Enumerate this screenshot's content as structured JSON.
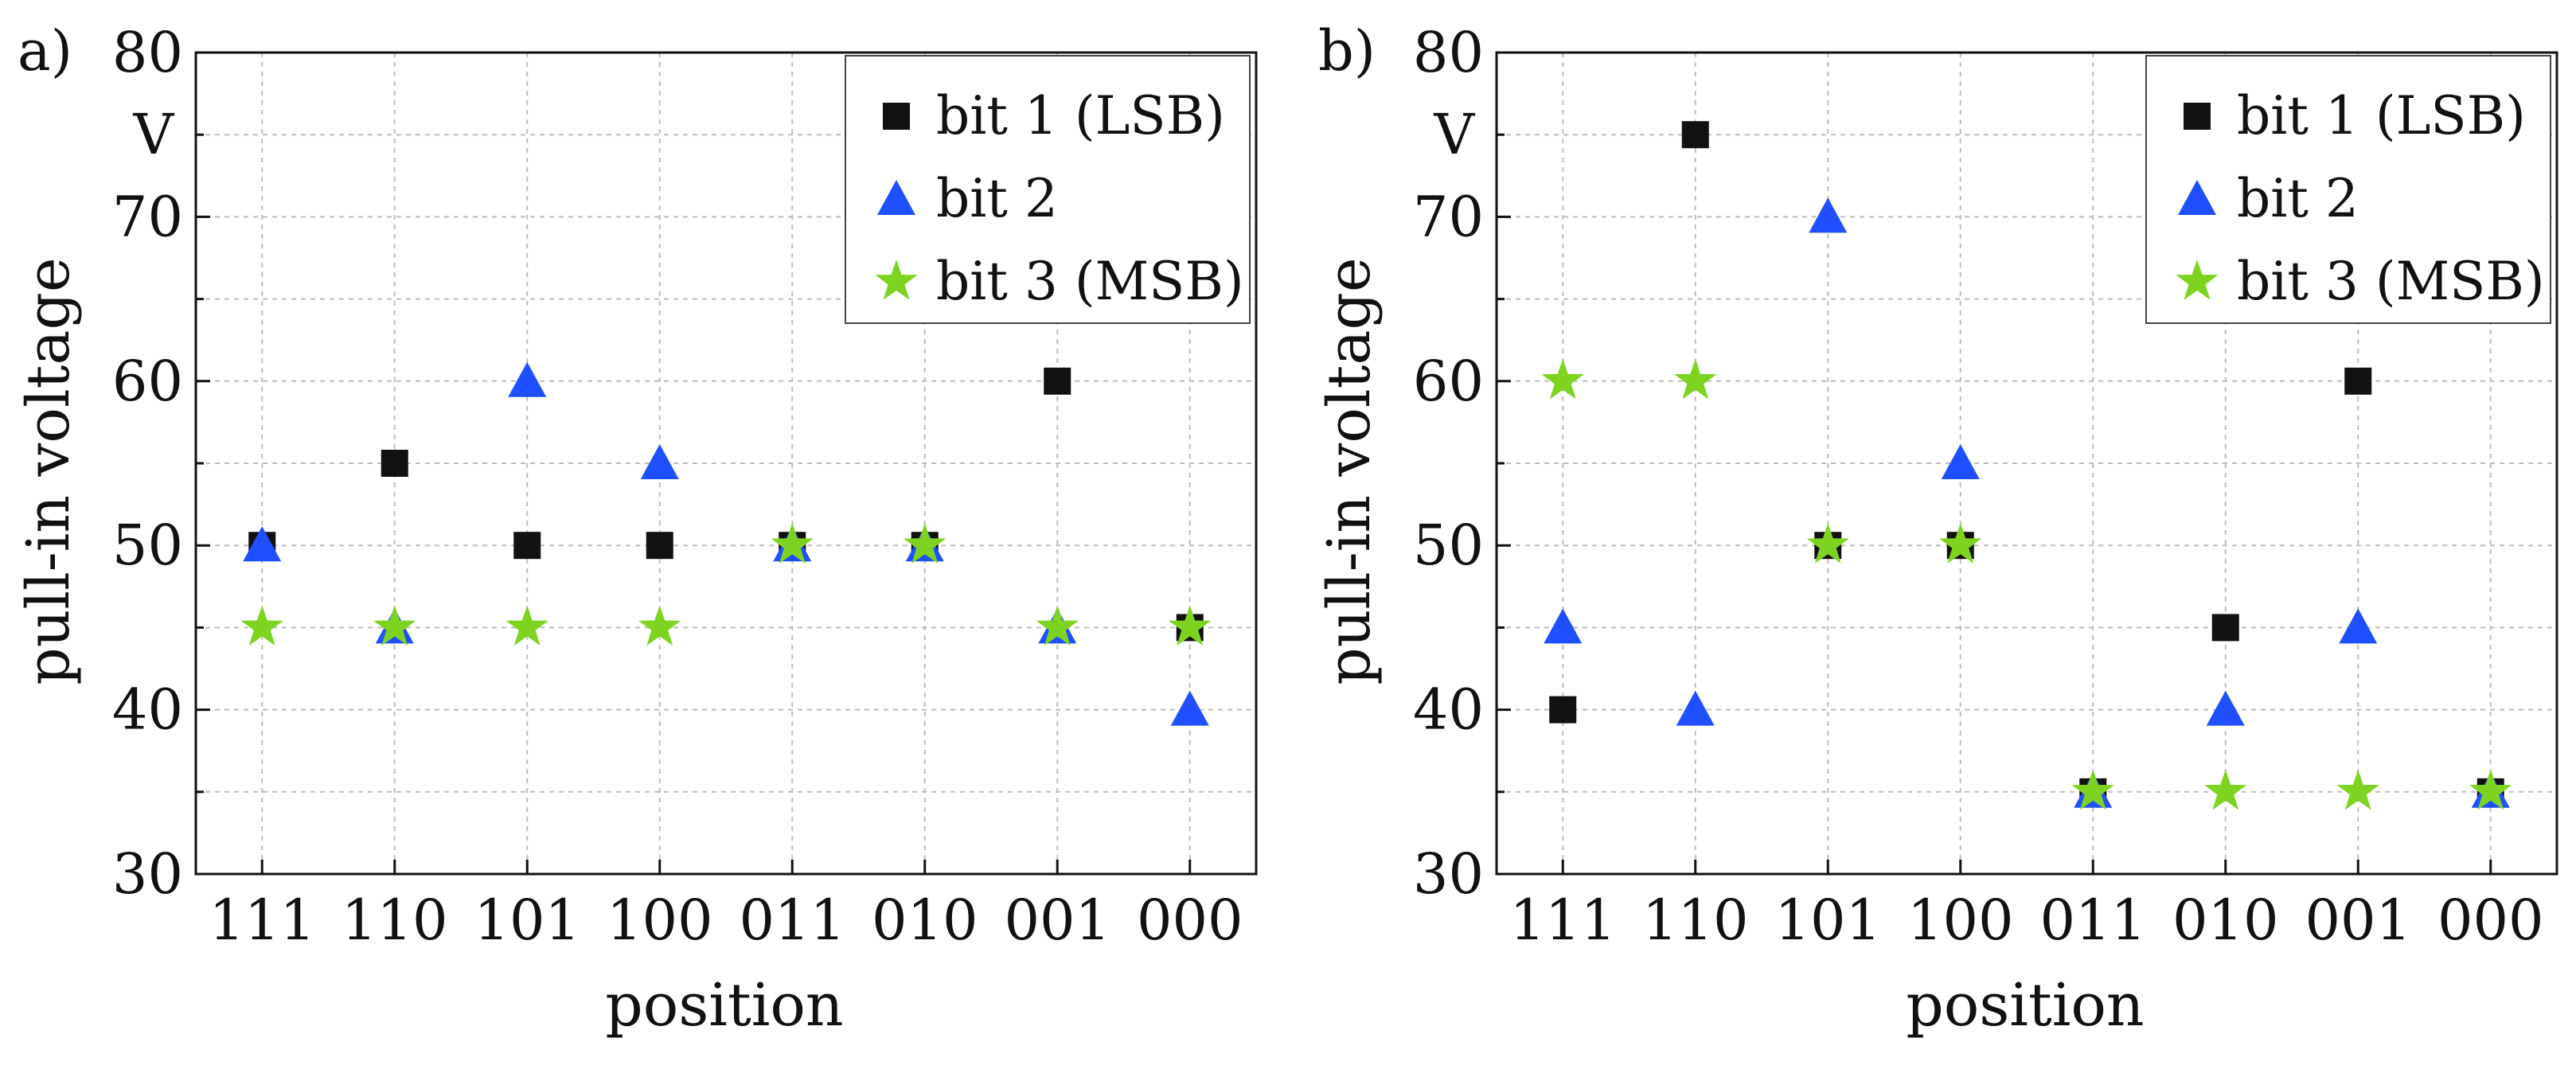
{
  "chart_data": [
    {
      "type": "scatter",
      "panel_label": "a)",
      "xlabel": "position",
      "ylabel": "pull-in voltage",
      "yunit": "V",
      "categories": [
        "111",
        "110",
        "101",
        "100",
        "011",
        "010",
        "001",
        "000"
      ],
      "ylim": [
        30,
        80
      ],
      "yticks": [
        "30",
        "40",
        "50",
        "60",
        "70",
        "80"
      ],
      "grid": true,
      "legend_position": "top-right",
      "series": [
        {
          "name": "bit 1 (LSB)",
          "marker": "square",
          "color": "#111111",
          "values": [
            50,
            55,
            50,
            50,
            50,
            50,
            60,
            45
          ]
        },
        {
          "name": "bit 2",
          "marker": "triangle",
          "color": "#1f4fff",
          "values": [
            50,
            45,
            60,
            55,
            50,
            50,
            45,
            40
          ]
        },
        {
          "name": "bit 3 (MSB)",
          "marker": "star",
          "color": "#7ed321",
          "values": [
            45,
            45,
            45,
            45,
            50,
            50,
            45,
            45
          ]
        }
      ]
    },
    {
      "type": "scatter",
      "panel_label": "b)",
      "xlabel": "position",
      "ylabel": "pull-in voltage",
      "yunit": "V",
      "categories": [
        "111",
        "110",
        "101",
        "100",
        "011",
        "010",
        "001",
        "000"
      ],
      "ylim": [
        30,
        80
      ],
      "yticks": [
        "30",
        "40",
        "50",
        "60",
        "70",
        "80"
      ],
      "grid": true,
      "legend_position": "top-right",
      "series": [
        {
          "name": "bit 1 (LSB)",
          "marker": "square",
          "color": "#111111",
          "values": [
            40,
            75,
            50,
            50,
            35,
            45,
            60,
            35
          ]
        },
        {
          "name": "bit 2",
          "marker": "triangle",
          "color": "#1f4fff",
          "values": [
            45,
            40,
            70,
            55,
            35,
            40,
            45,
            35
          ]
        },
        {
          "name": "bit 3 (MSB)",
          "marker": "star",
          "color": "#7ed321",
          "values": [
            60,
            60,
            50,
            50,
            35,
            35,
            35,
            35
          ]
        }
      ]
    }
  ]
}
